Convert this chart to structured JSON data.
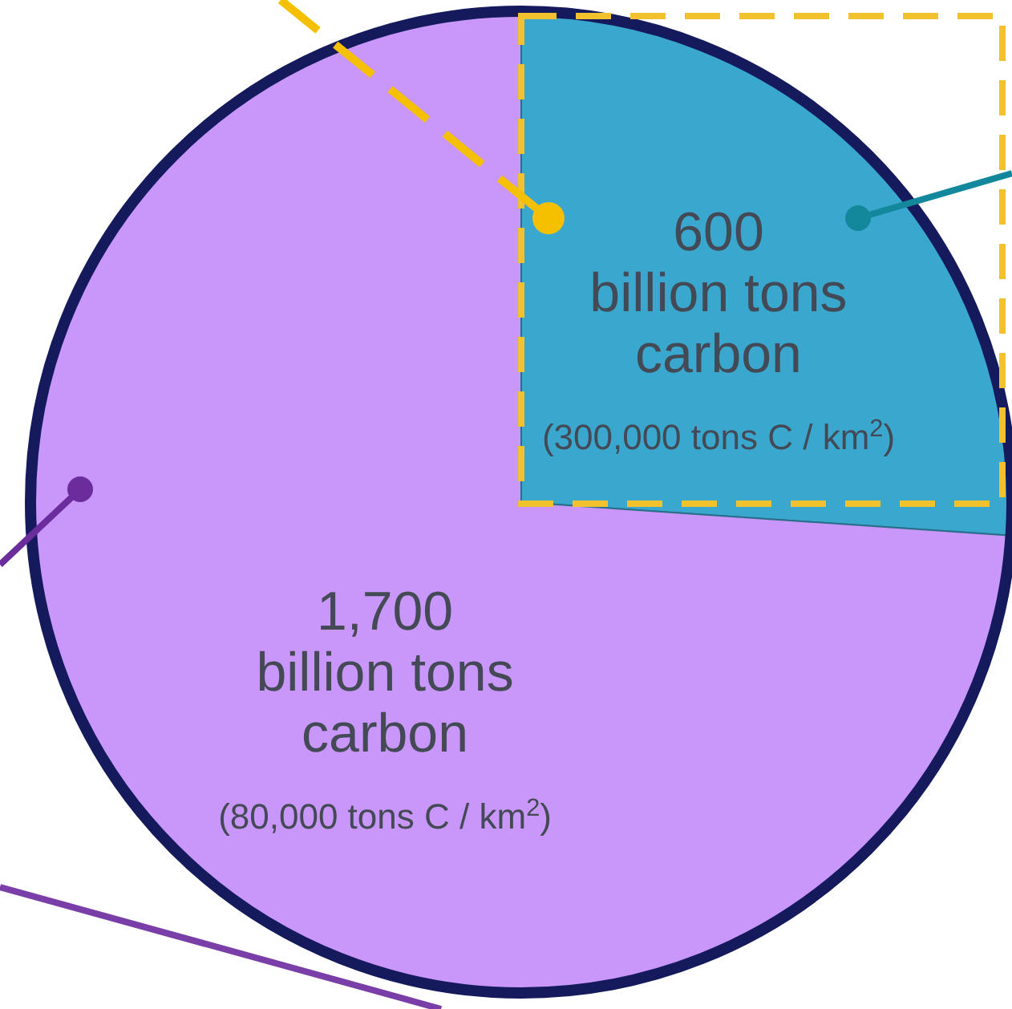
{
  "chart_data": {
    "type": "pie",
    "categories": [
      "billion tons carbon",
      "billion tons carbon"
    ],
    "values": [
      600,
      1700
    ],
    "value_labels": [
      "600",
      "1,700"
    ],
    "colors": [
      "#3aa7cf",
      "#c996fa"
    ],
    "annotations": [
      "(300,000 tons C / km$^{2}$)",
      "(80,000 tons C / km$^{2}$)"
    ]
  }
}
